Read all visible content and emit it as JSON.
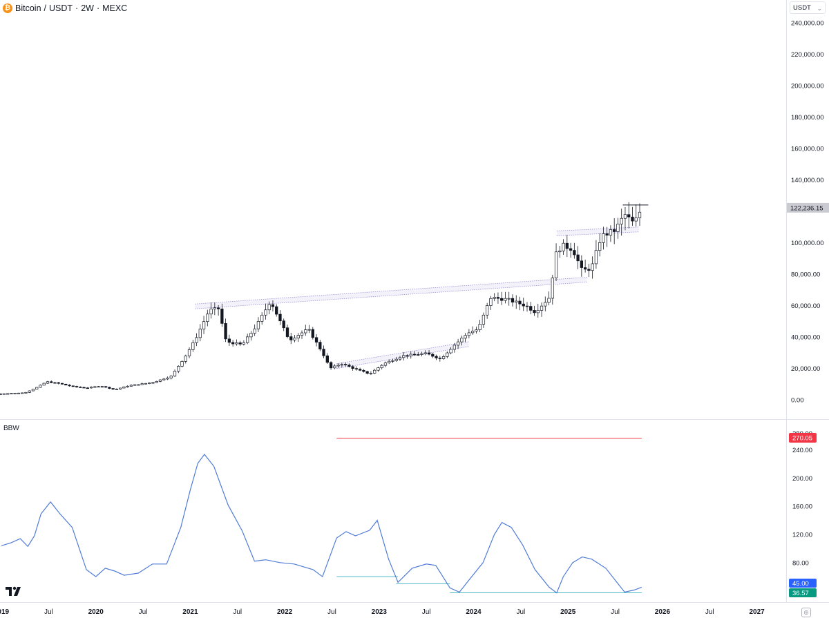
{
  "header": {
    "symbol": "Bitcoin",
    "quote": "USDT",
    "interval": "2W",
    "exchange": "MEXC",
    "coin_icon": "bitcoin-icon"
  },
  "currency_selector": {
    "value": "USDT"
  },
  "indicator": {
    "name": "BBW"
  },
  "chart_data": [
    {
      "type": "candlestick",
      "title": "Bitcoin / USDT · 2W · MEXC",
      "ylim": [
        -5000,
        250000
      ],
      "y_ticks": [
        {
          "label": "240,000.00",
          "value": 240000
        },
        {
          "label": "220,000.00",
          "value": 220000
        },
        {
          "label": "200,000.00",
          "value": 200000
        },
        {
          "label": "180,000.00",
          "value": 180000
        },
        {
          "label": "160,000.00",
          "value": 160000
        },
        {
          "label": "140,000.00",
          "value": 140000
        },
        {
          "label": "100,000.00",
          "value": 100000
        },
        {
          "label": "80,000.00",
          "value": 80000
        },
        {
          "label": "60,000.00",
          "value": 60000
        },
        {
          "label": "40,000.00",
          "value": 40000
        },
        {
          "label": "20,000.00",
          "value": 20000
        },
        {
          "label": "0.00",
          "value": 0
        }
      ],
      "last_price_label": "122,236.15",
      "last_price": 122236.15,
      "x_ticks": [
        {
          "label": "2019",
          "t": 2019.0,
          "bold": true
        },
        {
          "label": "Jul",
          "t": 2019.5
        },
        {
          "label": "2020",
          "t": 2020.0,
          "bold": true
        },
        {
          "label": "Jul",
          "t": 2020.5
        },
        {
          "label": "2021",
          "t": 2021.0,
          "bold": true
        },
        {
          "label": "Jul",
          "t": 2021.5
        },
        {
          "label": "2022",
          "t": 2022.0,
          "bold": true
        },
        {
          "label": "Jul",
          "t": 2022.5
        },
        {
          "label": "2023",
          "t": 2023.0,
          "bold": true
        },
        {
          "label": "Jul",
          "t": 2023.5
        },
        {
          "label": "2024",
          "t": 2024.0,
          "bold": true
        },
        {
          "label": "Jul",
          "t": 2024.5
        },
        {
          "label": "2025",
          "t": 2025.0,
          "bold": true
        },
        {
          "label": "Jul",
          "t": 2025.5
        },
        {
          "label": "2026",
          "t": 2026.0,
          "bold": true
        },
        {
          "label": "Jul",
          "t": 2026.5
        },
        {
          "label": "2027",
          "t": 2027.0,
          "bold": true
        }
      ],
      "price_path": [
        [
          2018.99,
          3800
        ],
        [
          2019.25,
          4500
        ],
        [
          2019.38,
          8000
        ],
        [
          2019.48,
          11500
        ],
        [
          2019.6,
          10500
        ],
        [
          2019.75,
          8500
        ],
        [
          2019.9,
          7500
        ],
        [
          2020.05,
          8800
        ],
        [
          2020.2,
          6500
        ],
        [
          2020.35,
          9000
        ],
        [
          2020.6,
          11000
        ],
        [
          2020.8,
          15000
        ],
        [
          2020.95,
          28000
        ],
        [
          2021.05,
          38000
        ],
        [
          2021.2,
          57000
        ],
        [
          2021.3,
          58000
        ],
        [
          2021.38,
          37000
        ],
        [
          2021.55,
          35000
        ],
        [
          2021.7,
          47000
        ],
        [
          2021.85,
          63000
        ],
        [
          2021.95,
          50000
        ],
        [
          2022.05,
          38000
        ],
        [
          2022.25,
          45000
        ],
        [
          2022.4,
          30000
        ],
        [
          2022.48,
          20000
        ],
        [
          2022.6,
          23000
        ],
        [
          2022.75,
          19500
        ],
        [
          2022.9,
          16500
        ],
        [
          2023.05,
          23000
        ],
        [
          2023.25,
          28000
        ],
        [
          2023.5,
          29500
        ],
        [
          2023.65,
          26000
        ],
        [
          2023.8,
          35000
        ],
        [
          2023.95,
          43000
        ],
        [
          2024.05,
          45000
        ],
        [
          2024.18,
          65000
        ],
        [
          2024.35,
          64000
        ],
        [
          2024.55,
          60000
        ],
        [
          2024.65,
          56000
        ],
        [
          2024.8,
          65000
        ],
        [
          2024.88,
          95000
        ],
        [
          2024.95,
          98000
        ],
        [
          2025.05,
          96000
        ],
        [
          2025.15,
          82000
        ],
        [
          2025.25,
          84000
        ],
        [
          2025.35,
          104000
        ],
        [
          2025.5,
          108000
        ],
        [
          2025.6,
          118000
        ],
        [
          2025.7,
          112000
        ],
        [
          2025.78,
          122236
        ]
      ],
      "levels": [
        {
          "name": "ath-line",
          "value": 124000,
          "t0": 2025.58,
          "t1": 2025.85,
          "color": "#131722"
        }
      ],
      "channels": [
        {
          "t0": 2021.05,
          "v0": 61000,
          "t1": 2025.2,
          "v1": 78000,
          "color": "#9c8fd6"
        },
        {
          "t0": 2022.55,
          "v0": 23000,
          "t1": 2023.95,
          "v1": 37000,
          "color": "#9c8fd6"
        },
        {
          "t0": 2024.88,
          "v0": 107500,
          "t1": 2025.75,
          "v1": 110000,
          "color": "#9c8fd6"
        }
      ]
    },
    {
      "type": "line",
      "title": "BBW",
      "ylim": [
        20,
        290
      ],
      "y_ticks": [
        {
          "label": "280.00",
          "value": 280
        },
        {
          "label": "240.00",
          "value": 240
        },
        {
          "label": "200.00",
          "value": 200
        },
        {
          "label": "160.00",
          "value": 160
        },
        {
          "label": "120.00",
          "value": 120
        },
        {
          "label": "80.00",
          "value": 80
        }
      ],
      "series": [
        {
          "color": "#4f7bd6",
          "points": [
            [
              2019.0,
              104
            ],
            [
              2019.1,
              108
            ],
            [
              2019.2,
              114
            ],
            [
              2019.28,
              103
            ],
            [
              2019.35,
              118
            ],
            [
              2019.42,
              170
            ],
            [
              2019.52,
              190
            ],
            [
              2019.62,
              170
            ],
            [
              2019.75,
              130
            ],
            [
              2019.9,
              70
            ],
            [
              2020.0,
              60
            ],
            [
              2020.1,
              72
            ],
            [
              2020.2,
              68
            ],
            [
              2020.3,
              62
            ],
            [
              2020.45,
              65
            ],
            [
              2020.6,
              78
            ],
            [
              2020.75,
              78
            ],
            [
              2020.9,
              130
            ],
            [
              2021.0,
              210
            ],
            [
              2021.08,
              255
            ],
            [
              2021.15,
              270
            ],
            [
              2021.25,
              250
            ],
            [
              2021.4,
              185
            ],
            [
              2021.55,
              125
            ],
            [
              2021.68,
              82
            ],
            [
              2021.8,
              84
            ],
            [
              2021.95,
              80
            ],
            [
              2022.1,
              78
            ],
            [
              2022.3,
              70
            ],
            [
              2022.4,
              60
            ],
            [
              2022.55,
              115
            ],
            [
              2022.65,
              124
            ],
            [
              2022.75,
              118
            ],
            [
              2022.9,
              126
            ],
            [
              2022.98,
              140
            ],
            [
              2023.1,
              85
            ],
            [
              2023.2,
              52
            ],
            [
              2023.35,
              72
            ],
            [
              2023.5,
              78
            ],
            [
              2023.6,
              76
            ],
            [
              2023.75,
              44
            ],
            [
              2023.85,
              38
            ],
            [
              2023.95,
              55
            ],
            [
              2024.1,
              80
            ],
            [
              2024.22,
              120
            ],
            [
              2024.3,
              137
            ],
            [
              2024.4,
              130
            ],
            [
              2024.52,
              105
            ],
            [
              2024.65,
              70
            ],
            [
              2024.8,
              45
            ],
            [
              2024.88,
              37
            ],
            [
              2024.95,
              60
            ],
            [
              2025.05,
              80
            ],
            [
              2025.15,
              88
            ],
            [
              2025.25,
              85
            ],
            [
              2025.4,
              72
            ],
            [
              2025.5,
              55
            ],
            [
              2025.6,
              38
            ],
            [
              2025.7,
              41
            ],
            [
              2025.78,
              45
            ]
          ]
        }
      ],
      "levels": [
        {
          "value": 270.05,
          "label": "270.05",
          "t0": 2022.55,
          "t1": 2025.78,
          "color": "#f23645",
          "width": 1
        },
        {
          "value": 60,
          "t0": 2022.55,
          "t1": 2023.2,
          "color": "#4bb8c7",
          "width": 1
        },
        {
          "value": 50,
          "t0": 2023.18,
          "t1": 2023.75,
          "color": "#4bb8c7",
          "width": 1
        },
        {
          "value": 37,
          "t0": 2023.75,
          "t1": 2025.78,
          "color": "#4bb8c7",
          "width": 1
        }
      ],
      "last_value_label": "45.00",
      "last_value": 45,
      "last_value_color": "#2962ff",
      "low_value_label": "36.57",
      "low_value": 36.57,
      "low_value_color": "#089981"
    }
  ]
}
